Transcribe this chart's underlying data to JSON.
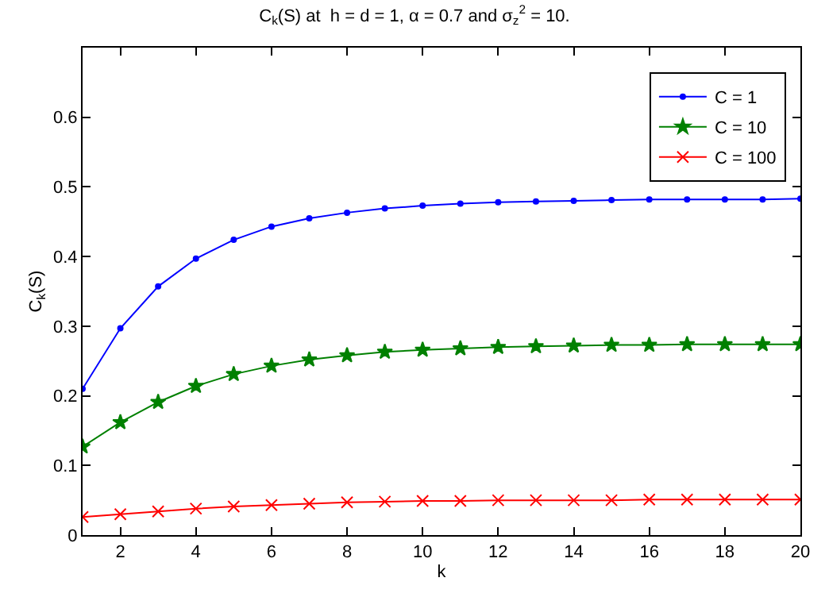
{
  "chart_data": {
    "type": "line",
    "title": "C$_{k}$(S) at  h = d = 1, α = 0.7 and σ$_{z}$$^{2}$ = 10.",
    "xlabel": "k",
    "ylabel": "C$_{k}$(S)",
    "x": [
      1,
      2,
      3,
      4,
      5,
      6,
      7,
      8,
      9,
      10,
      11,
      12,
      13,
      14,
      15,
      16,
      17,
      18,
      19,
      20
    ],
    "series": [
      {
        "name": "C = 1",
        "color": "#0000ff",
        "marker": "circle",
        "values": [
          0.21,
          0.297,
          0.357,
          0.397,
          0.424,
          0.443,
          0.455,
          0.463,
          0.469,
          0.473,
          0.476,
          0.478,
          0.479,
          0.48,
          0.481,
          0.482,
          0.482,
          0.482,
          0.482,
          0.483
        ]
      },
      {
        "name": "C = 10",
        "color": "#008000",
        "marker": "star",
        "values": [
          0.127,
          0.162,
          0.191,
          0.214,
          0.231,
          0.243,
          0.252,
          0.258,
          0.263,
          0.266,
          0.268,
          0.27,
          0.271,
          0.272,
          0.273,
          0.273,
          0.274,
          0.274,
          0.274,
          0.274
        ]
      },
      {
        "name": "C = 100",
        "color": "#ff0000",
        "marker": "cross",
        "values": [
          0.026,
          0.03,
          0.034,
          0.038,
          0.041,
          0.043,
          0.045,
          0.047,
          0.048,
          0.049,
          0.049,
          0.05,
          0.05,
          0.05,
          0.05,
          0.051,
          0.051,
          0.051,
          0.051,
          0.051
        ]
      }
    ],
    "xlim": [
      1,
      20
    ],
    "xticks": [
      2,
      4,
      6,
      8,
      10,
      12,
      14,
      16,
      18,
      20
    ],
    "ylim": [
      0,
      0.7
    ],
    "yticks": [
      0,
      0.1,
      0.2,
      0.3,
      0.4,
      0.5,
      0.6
    ],
    "legend": "top right",
    "line_style": "solid"
  }
}
